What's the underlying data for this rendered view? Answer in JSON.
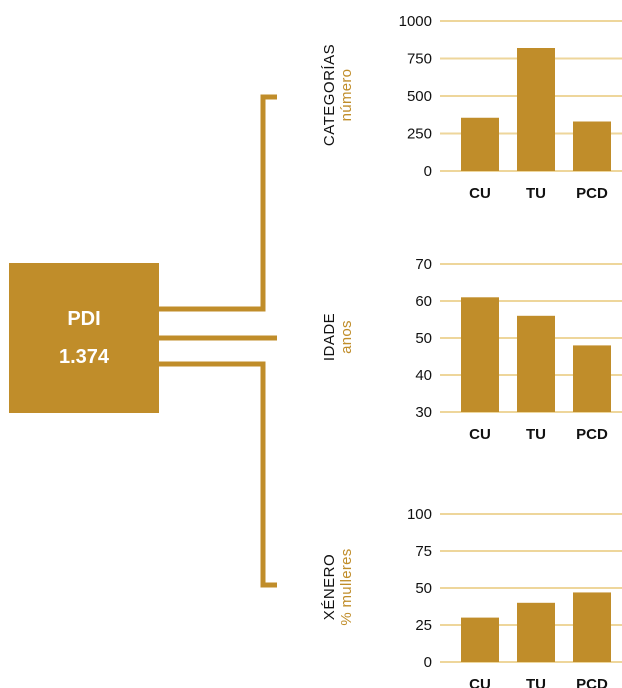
{
  "pdi": {
    "label": "PDI",
    "value": "1.374"
  },
  "colors": {
    "accent": "#c08d2a",
    "grid": "#eed69b",
    "text": "#111111"
  },
  "chart_data": [
    {
      "type": "bar",
      "title": "CATEGORÍAS",
      "unit": "número",
      "categories": [
        "CU",
        "TU",
        "PCD"
      ],
      "values": [
        355,
        820,
        330
      ],
      "ylim": [
        0,
        1000
      ],
      "yticks": [
        0,
        250,
        500,
        750,
        1000
      ],
      "grid": true
    },
    {
      "type": "bar",
      "title": "IDADE",
      "unit": "anos",
      "categories": [
        "CU",
        "TU",
        "PCD"
      ],
      "values": [
        61,
        56,
        48
      ],
      "ylim": [
        30,
        70
      ],
      "yticks": [
        30,
        40,
        50,
        60,
        70
      ],
      "grid": true
    },
    {
      "type": "bar",
      "title": "XÉNERO",
      "unit": "% mulleres",
      "categories": [
        "CU",
        "TU",
        "PCD"
      ],
      "values": [
        30,
        40,
        47
      ],
      "ylim": [
        0,
        100
      ],
      "yticks": [
        0,
        25,
        50,
        75,
        100
      ],
      "grid": true
    }
  ]
}
